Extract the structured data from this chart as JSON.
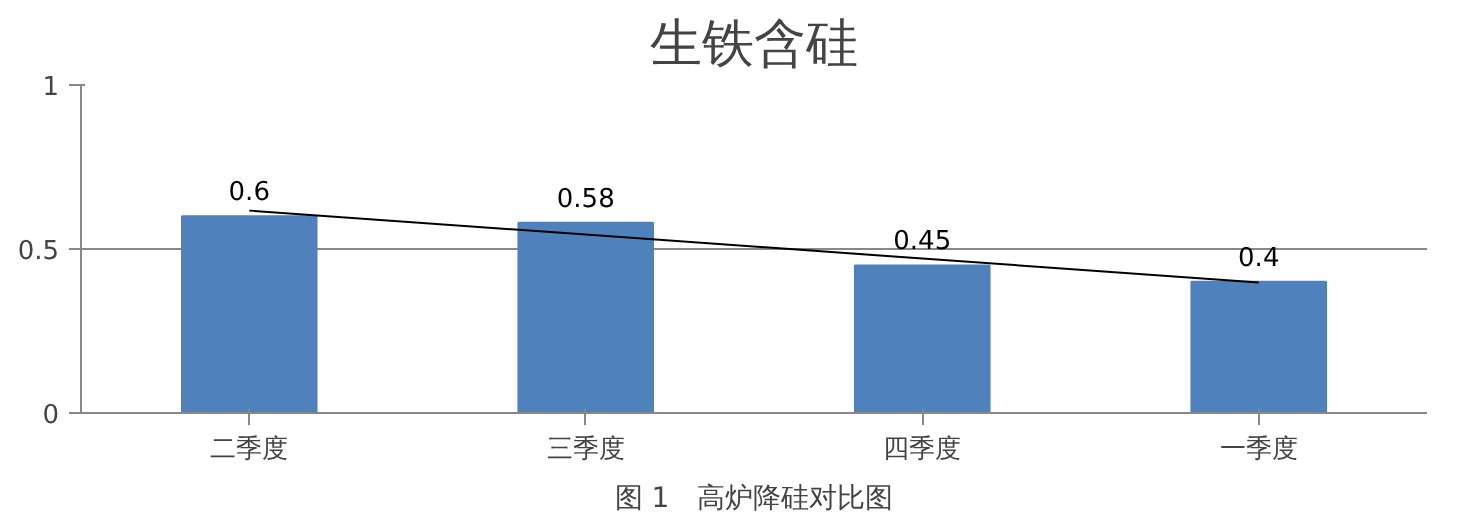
{
  "chart_data": {
    "type": "bar",
    "title": "生铁含硅",
    "categories": [
      "二季度",
      "三季度",
      "四季度",
      "一季度"
    ],
    "series": [
      {
        "color": "#4f81bd",
        "values": [
          0.6,
          0.58,
          0.45,
          0.4
        ],
        "value_labels": [
          "0.6",
          "0.58",
          "0.45",
          "0.4"
        ]
      },
      {
        "type": "line",
        "color": "#000000",
        "values": [
          0.617,
          0.544,
          0.471,
          0.398
        ]
      }
    ],
    "ylim": [
      0,
      1
    ],
    "yticks": [
      0,
      0.5,
      1
    ],
    "grid": "y",
    "annotations": [
      "图 1　高炉降硅对比图"
    ]
  }
}
